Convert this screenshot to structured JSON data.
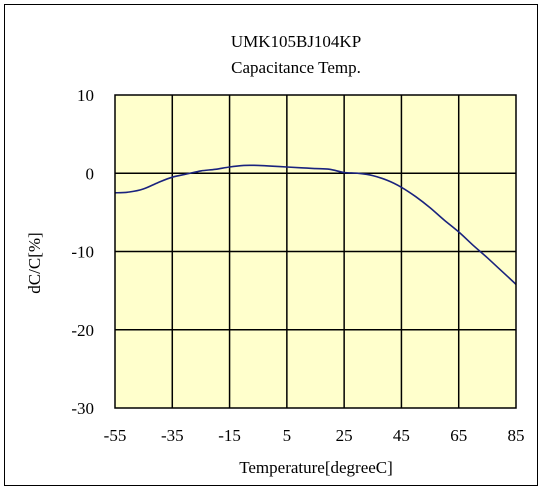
{
  "chart_data": {
    "type": "line",
    "title": "UMK105BJ104KP",
    "subtitle": "Capacitance Temp.",
    "xlabel": "Temperature[degreeC]",
    "ylabel": "dC/C[%]",
    "xlim": [
      -55,
      85
    ],
    "ylim": [
      -30,
      10
    ],
    "xticks": [
      -55,
      -35,
      -15,
      5,
      25,
      45,
      65,
      85
    ],
    "yticks": [
      -30,
      -20,
      -10,
      0,
      10
    ],
    "xtick_labels": [
      "-55",
      "-35",
      "-15",
      "5",
      "25",
      "45",
      "65",
      "85"
    ],
    "ytick_labels": [
      "-30",
      "-20",
      "-10",
      "0",
      "10"
    ],
    "grid": true,
    "plot_background": "#ffffcc",
    "series": [
      {
        "color": "#1a237e",
        "x": [
          -55,
          -50,
          -45,
          -40,
          -35,
          -30,
          -25,
          -20,
          -15,
          -10,
          -5,
          0,
          5,
          10,
          15,
          20,
          25,
          30,
          35,
          40,
          45,
          50,
          55,
          60,
          65,
          70,
          75,
          80,
          85
        ],
        "y": [
          -2.5,
          -2.4,
          -2.0,
          -1.2,
          -0.5,
          -0.1,
          0.3,
          0.5,
          0.8,
          1.0,
          1.0,
          0.9,
          0.8,
          0.7,
          0.6,
          0.5,
          0.1,
          0.0,
          -0.3,
          -0.9,
          -1.8,
          -3.0,
          -4.4,
          -6.0,
          -7.5,
          -9.2,
          -10.8,
          -12.5,
          -14.2
        ]
      }
    ]
  }
}
